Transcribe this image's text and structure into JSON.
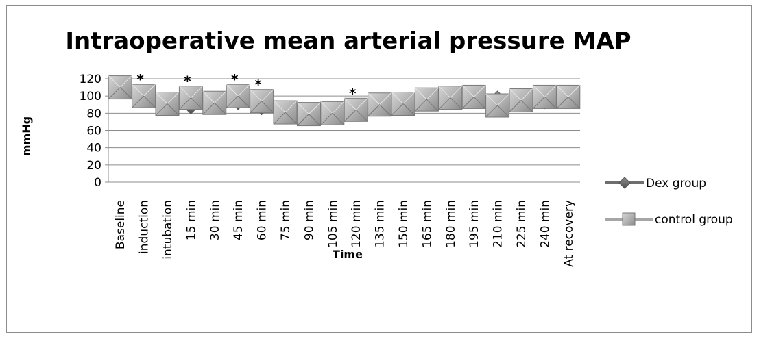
{
  "chart_data": {
    "type": "line",
    "title": "Intraoperative mean arterial pressure MAP",
    "xlabel": "Time",
    "ylabel": "mmHg",
    "ylim": [
      0,
      120
    ],
    "yticks": [
      "0",
      "20",
      "40",
      "60",
      "80",
      "100",
      "120"
    ],
    "grid": true,
    "legend_position": "right",
    "categories": [
      "Baseline",
      "induction",
      "intubation",
      "15 min",
      "30 min",
      "45 min",
      "60 min",
      "75 min",
      "90 min",
      "105 min",
      "120 min",
      "135 min",
      "150 min",
      "165 min",
      "180 min",
      "195 min",
      "210 min",
      "225 min",
      "240 min",
      "At recovery"
    ],
    "series": [
      {
        "name": "Dex group",
        "marker": "diamond",
        "color": "#6e6e6e",
        "values": [
          110,
          100,
          91,
          88,
          92,
          93,
          87,
          81,
          79,
          80,
          80,
          88,
          94,
          96,
          97,
          99,
          97,
          98,
          94,
          99
        ]
      },
      {
        "name": "control group",
        "marker": "square",
        "color": "#a6a6a6",
        "values": [
          110,
          100,
          91,
          98,
          92,
          100,
          94,
          81,
          79,
          80,
          84,
          90,
          91,
          96,
          98,
          99,
          89,
          95,
          99,
          99
        ]
      }
    ],
    "significance_marker": "*",
    "significant_categories": [
      "induction",
      "15 min",
      "45 min",
      "60 min",
      "120 min"
    ]
  }
}
